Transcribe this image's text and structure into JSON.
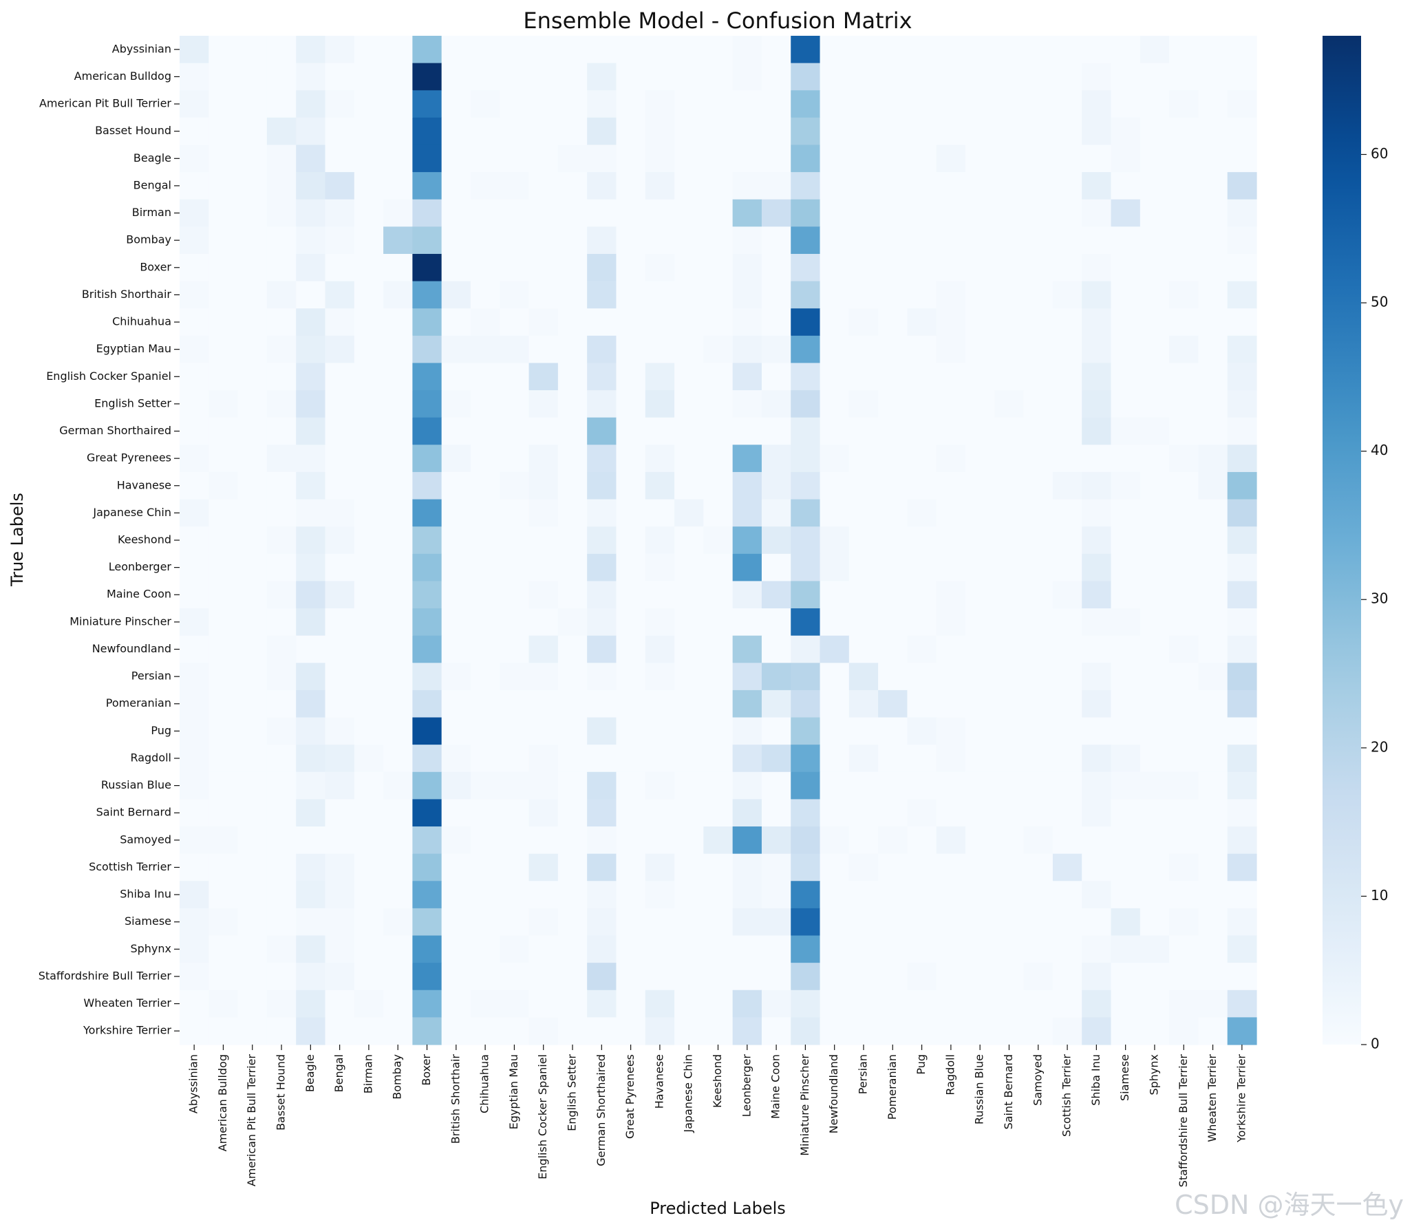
{
  "chart_data": {
    "type": "heatmap",
    "title": "Ensemble Model - Confusion Matrix",
    "xlabel": "Predicted Labels",
    "ylabel": "True Labels",
    "labels": [
      "Abyssinian",
      "American Bulldog",
      "American Pit Bull Terrier",
      "Basset Hound",
      "Beagle",
      "Bengal",
      "Birman",
      "Bombay",
      "Boxer",
      "British Shorthair",
      "Chihuahua",
      "Egyptian Mau",
      "English Cocker Spaniel",
      "English Setter",
      "German Shorthaired",
      "Great Pyrenees",
      "Havanese",
      "Japanese Chin",
      "Keeshond",
      "Leonberger",
      "Maine Coon",
      "Miniature Pinscher",
      "Newfoundland",
      "Persian",
      "Pomeranian",
      "Pug",
      "Ragdoll",
      "Russian Blue",
      "Saint Bernard",
      "Samoyed",
      "Scottish Terrier",
      "Shiba Inu",
      "Siamese",
      "Sphynx",
      "Staffordshire Bull Terrier",
      "Wheaten Terrier",
      "Yorkshire Terrier"
    ],
    "colorbar": {
      "min": 0,
      "max": 68,
      "ticks": [
        0,
        10,
        20,
        30,
        40,
        50,
        60
      ],
      "colormap": "Blues"
    },
    "matrix": [
      [
        6,
        0,
        0,
        0,
        5,
        2,
        0,
        0,
        28,
        0,
        0,
        0,
        0,
        0,
        0,
        0,
        0,
        0,
        0,
        1,
        0,
        55,
        0,
        0,
        0,
        0,
        0,
        0,
        0,
        0,
        0,
        0,
        0,
        2,
        0,
        0,
        0
      ],
      [
        1,
        0,
        0,
        0,
        2,
        0,
        0,
        0,
        68,
        0,
        0,
        0,
        0,
        0,
        5,
        0,
        0,
        0,
        0,
        1,
        0,
        19,
        0,
        0,
        0,
        0,
        0,
        0,
        0,
        0,
        0,
        1,
        0,
        0,
        0,
        0,
        0
      ],
      [
        2,
        0,
        0,
        0,
        6,
        1,
        0,
        0,
        50,
        0,
        1,
        0,
        0,
        0,
        2,
        0,
        1,
        0,
        0,
        0,
        0,
        28,
        0,
        0,
        0,
        0,
        0,
        0,
        0,
        0,
        0,
        3,
        0,
        0,
        1,
        0,
        1
      ],
      [
        0,
        0,
        0,
        6,
        4,
        0,
        0,
        0,
        55,
        0,
        0,
        0,
        0,
        0,
        8,
        0,
        1,
        0,
        0,
        0,
        0,
        24,
        0,
        0,
        0,
        0,
        0,
        0,
        0,
        0,
        0,
        3,
        1,
        0,
        0,
        0,
        0
      ],
      [
        1,
        0,
        0,
        1,
        10,
        0,
        0,
        0,
        55,
        0,
        0,
        0,
        0,
        1,
        1,
        0,
        1,
        0,
        0,
        0,
        0,
        28,
        0,
        0,
        0,
        0,
        2,
        0,
        0,
        0,
        0,
        0,
        1,
        0,
        0,
        0,
        0
      ],
      [
        0,
        0,
        0,
        1,
        8,
        11,
        0,
        0,
        37,
        0,
        1,
        1,
        0,
        0,
        4,
        0,
        3,
        0,
        0,
        1,
        1,
        14,
        0,
        0,
        0,
        0,
        0,
        0,
        0,
        0,
        0,
        6,
        0,
        0,
        0,
        0,
        15
      ],
      [
        3,
        0,
        0,
        1,
        4,
        2,
        0,
        1,
        16,
        0,
        0,
        0,
        0,
        0,
        0,
        0,
        0,
        0,
        0,
        25,
        15,
        26,
        0,
        0,
        0,
        0,
        0,
        0,
        0,
        0,
        0,
        1,
        11,
        0,
        0,
        0,
        2
      ],
      [
        2,
        0,
        0,
        0,
        2,
        1,
        0,
        22,
        24,
        0,
        0,
        0,
        0,
        0,
        4,
        0,
        0,
        0,
        0,
        1,
        0,
        37,
        0,
        0,
        0,
        0,
        0,
        0,
        0,
        0,
        0,
        0,
        0,
        0,
        0,
        0,
        1
      ],
      [
        0,
        0,
        0,
        0,
        4,
        0,
        0,
        0,
        68,
        0,
        0,
        0,
        0,
        0,
        14,
        0,
        1,
        0,
        0,
        2,
        0,
        12,
        0,
        0,
        0,
        0,
        0,
        0,
        0,
        0,
        0,
        1,
        0,
        0,
        0,
        0,
        0
      ],
      [
        1,
        0,
        0,
        2,
        0,
        5,
        0,
        2,
        37,
        4,
        0,
        1,
        0,
        0,
        13,
        0,
        0,
        0,
        0,
        2,
        0,
        21,
        0,
        0,
        0,
        0,
        1,
        0,
        0,
        0,
        1,
        5,
        0,
        0,
        1,
        0,
        5
      ],
      [
        0,
        0,
        0,
        0,
        7,
        1,
        0,
        0,
        27,
        0,
        1,
        0,
        1,
        0,
        0,
        0,
        0,
        0,
        0,
        1,
        0,
        57,
        0,
        1,
        0,
        2,
        1,
        0,
        0,
        0,
        0,
        3,
        0,
        0,
        0,
        0,
        0
      ],
      [
        1,
        0,
        0,
        1,
        6,
        4,
        0,
        0,
        20,
        2,
        2,
        2,
        0,
        0,
        12,
        0,
        0,
        0,
        1,
        3,
        2,
        36,
        0,
        0,
        0,
        0,
        1,
        0,
        0,
        0,
        0,
        3,
        0,
        0,
        2,
        0,
        5
      ],
      [
        0,
        0,
        0,
        0,
        9,
        0,
        0,
        0,
        39,
        0,
        0,
        0,
        14,
        0,
        10,
        0,
        5,
        0,
        0,
        9,
        0,
        10,
        0,
        0,
        0,
        0,
        0,
        0,
        0,
        0,
        0,
        6,
        0,
        0,
        0,
        0,
        4
      ],
      [
        0,
        1,
        0,
        1,
        11,
        0,
        0,
        0,
        40,
        1,
        0,
        0,
        2,
        0,
        4,
        0,
        7,
        0,
        0,
        1,
        2,
        16,
        0,
        1,
        0,
        0,
        0,
        0,
        1,
        0,
        0,
        7,
        0,
        0,
        0,
        0,
        3
      ],
      [
        0,
        0,
        0,
        0,
        7,
        0,
        0,
        0,
        46,
        0,
        0,
        0,
        0,
        0,
        28,
        0,
        0,
        0,
        0,
        0,
        0,
        6,
        0,
        0,
        0,
        0,
        0,
        0,
        0,
        0,
        0,
        8,
        1,
        1,
        0,
        0,
        1
      ],
      [
        1,
        0,
        0,
        2,
        2,
        0,
        0,
        0,
        28,
        2,
        0,
        0,
        2,
        0,
        12,
        0,
        2,
        0,
        0,
        32,
        4,
        6,
        1,
        0,
        0,
        0,
        1,
        0,
        0,
        0,
        0,
        0,
        0,
        0,
        1,
        2,
        8
      ],
      [
        0,
        1,
        0,
        0,
        5,
        0,
        0,
        0,
        15,
        0,
        0,
        1,
        2,
        0,
        13,
        0,
        6,
        0,
        0,
        12,
        4,
        10,
        0,
        0,
        0,
        0,
        0,
        0,
        0,
        0,
        2,
        3,
        1,
        0,
        0,
        2,
        27
      ],
      [
        2,
        0,
        0,
        0,
        1,
        1,
        0,
        0,
        40,
        0,
        0,
        0,
        1,
        0,
        2,
        0,
        0,
        3,
        0,
        12,
        2,
        22,
        0,
        0,
        0,
        1,
        0,
        0,
        0,
        0,
        0,
        1,
        0,
        0,
        0,
        0,
        18
      ],
      [
        0,
        0,
        0,
        1,
        6,
        2,
        0,
        0,
        24,
        0,
        0,
        0,
        0,
        0,
        6,
        0,
        2,
        0,
        1,
        32,
        8,
        12,
        2,
        0,
        0,
        0,
        0,
        0,
        0,
        0,
        0,
        4,
        0,
        0,
        0,
        0,
        7
      ],
      [
        0,
        0,
        0,
        0,
        5,
        0,
        0,
        0,
        28,
        0,
        0,
        0,
        0,
        0,
        13,
        0,
        1,
        0,
        0,
        40,
        0,
        12,
        2,
        0,
        0,
        0,
        0,
        0,
        0,
        0,
        0,
        7,
        0,
        0,
        0,
        0,
        2
      ],
      [
        0,
        0,
        0,
        1,
        11,
        4,
        0,
        0,
        25,
        0,
        0,
        0,
        1,
        0,
        4,
        0,
        0,
        0,
        0,
        4,
        12,
        24,
        0,
        0,
        0,
        0,
        1,
        0,
        0,
        0,
        1,
        10,
        0,
        0,
        0,
        0,
        9
      ],
      [
        2,
        0,
        0,
        0,
        8,
        0,
        0,
        0,
        28,
        0,
        0,
        0,
        0,
        1,
        3,
        0,
        1,
        0,
        0,
        0,
        0,
        52,
        0,
        0,
        0,
        0,
        1,
        0,
        0,
        0,
        0,
        1,
        1,
        0,
        0,
        0,
        1
      ],
      [
        0,
        0,
        0,
        1,
        0,
        0,
        0,
        0,
        31,
        0,
        0,
        0,
        5,
        0,
        12,
        0,
        3,
        0,
        0,
        24,
        0,
        4,
        12,
        0,
        0,
        1,
        0,
        0,
        0,
        0,
        0,
        0,
        0,
        0,
        1,
        0,
        3
      ],
      [
        1,
        0,
        0,
        1,
        8,
        0,
        0,
        0,
        8,
        1,
        0,
        1,
        1,
        0,
        1,
        0,
        1,
        0,
        0,
        12,
        21,
        20,
        0,
        8,
        0,
        0,
        0,
        0,
        0,
        0,
        0,
        2,
        0,
        0,
        0,
        1,
        18
      ],
      [
        1,
        0,
        0,
        0,
        11,
        0,
        0,
        0,
        14,
        0,
        0,
        0,
        0,
        0,
        0,
        0,
        0,
        0,
        0,
        24,
        6,
        16,
        0,
        4,
        10,
        0,
        0,
        0,
        0,
        0,
        0,
        4,
        0,
        0,
        0,
        0,
        16
      ],
      [
        1,
        0,
        0,
        1,
        4,
        1,
        0,
        0,
        60,
        0,
        0,
        0,
        0,
        0,
        7,
        0,
        0,
        0,
        0,
        2,
        0,
        24,
        0,
        0,
        0,
        2,
        1,
        0,
        0,
        0,
        0,
        0,
        0,
        0,
        0,
        0,
        0
      ],
      [
        1,
        0,
        0,
        0,
        6,
        5,
        1,
        0,
        14,
        1,
        0,
        0,
        1,
        0,
        0,
        0,
        0,
        0,
        0,
        10,
        14,
        35,
        0,
        2,
        0,
        0,
        1,
        0,
        0,
        0,
        0,
        4,
        2,
        0,
        0,
        0,
        7
      ],
      [
        1,
        0,
        0,
        0,
        2,
        3,
        0,
        1,
        28,
        3,
        1,
        1,
        1,
        0,
        13,
        0,
        1,
        0,
        0,
        2,
        0,
        38,
        0,
        0,
        0,
        0,
        0,
        0,
        0,
        0,
        0,
        2,
        1,
        1,
        1,
        0,
        5
      ],
      [
        0,
        0,
        0,
        0,
        6,
        0,
        0,
        0,
        58,
        0,
        0,
        0,
        2,
        0,
        12,
        0,
        0,
        0,
        0,
        8,
        0,
        13,
        0,
        0,
        0,
        1,
        0,
        0,
        0,
        0,
        0,
        2,
        0,
        0,
        0,
        0,
        1
      ],
      [
        1,
        1,
        0,
        0,
        0,
        0,
        0,
        0,
        22,
        1,
        0,
        0,
        0,
        0,
        1,
        0,
        0,
        0,
        6,
        40,
        8,
        16,
        1,
        0,
        1,
        0,
        3,
        0,
        0,
        1,
        0,
        0,
        0,
        0,
        0,
        0,
        4
      ],
      [
        0,
        0,
        0,
        0,
        4,
        2,
        0,
        0,
        27,
        0,
        0,
        0,
        6,
        0,
        14,
        0,
        3,
        0,
        0,
        2,
        1,
        14,
        0,
        1,
        0,
        0,
        0,
        0,
        0,
        0,
        9,
        0,
        0,
        0,
        1,
        0,
        12
      ],
      [
        4,
        0,
        0,
        0,
        5,
        2,
        0,
        0,
        36,
        0,
        0,
        0,
        0,
        0,
        2,
        0,
        1,
        0,
        0,
        2,
        1,
        46,
        0,
        0,
        0,
        0,
        0,
        0,
        0,
        0,
        0,
        2,
        0,
        0,
        0,
        0,
        0
      ],
      [
        2,
        1,
        0,
        0,
        1,
        1,
        0,
        1,
        24,
        0,
        0,
        0,
        1,
        0,
        3,
        0,
        0,
        0,
        0,
        4,
        4,
        53,
        0,
        0,
        0,
        0,
        0,
        0,
        0,
        0,
        0,
        0,
        6,
        0,
        1,
        0,
        2
      ],
      [
        2,
        0,
        0,
        1,
        6,
        1,
        0,
        0,
        41,
        0,
        0,
        1,
        0,
        0,
        4,
        0,
        0,
        0,
        0,
        0,
        0,
        38,
        0,
        0,
        0,
        0,
        0,
        0,
        0,
        0,
        0,
        1,
        2,
        2,
        0,
        0,
        5
      ],
      [
        1,
        0,
        0,
        0,
        3,
        2,
        0,
        0,
        44,
        0,
        0,
        0,
        0,
        0,
        16,
        0,
        0,
        0,
        0,
        0,
        0,
        19,
        0,
        0,
        0,
        1,
        0,
        0,
        0,
        1,
        0,
        3,
        0,
        0,
        0,
        0,
        0
      ],
      [
        0,
        1,
        0,
        1,
        7,
        0,
        1,
        0,
        32,
        0,
        1,
        1,
        0,
        0,
        5,
        0,
        6,
        0,
        0,
        14,
        2,
        6,
        0,
        0,
        0,
        0,
        0,
        0,
        0,
        0,
        0,
        7,
        0,
        0,
        1,
        1,
        11
      ],
      [
        0,
        0,
        0,
        0,
        9,
        0,
        0,
        0,
        26,
        0,
        0,
        0,
        1,
        0,
        0,
        0,
        4,
        0,
        0,
        12,
        0,
        8,
        0,
        0,
        0,
        0,
        0,
        0,
        0,
        0,
        1,
        10,
        0,
        0,
        1,
        0,
        34
      ]
    ]
  },
  "watermark": "CSDN @海天一色y"
}
